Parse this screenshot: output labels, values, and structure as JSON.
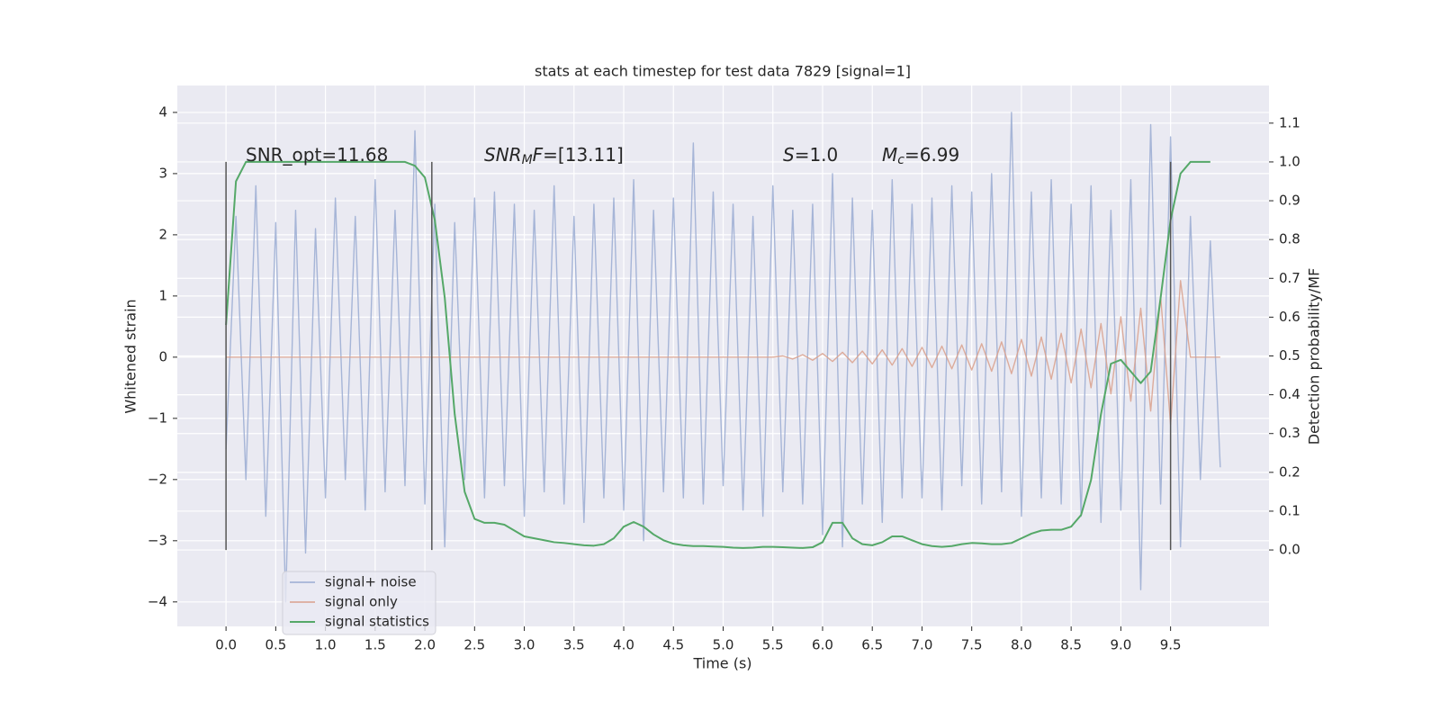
{
  "chart_data": {
    "type": "line",
    "title": "stats at each timestep for test data 7829 [signal=1]",
    "xlabel": "Time (s)",
    "ylabel": "Whitened strain",
    "y2label": "Detection probability/MF",
    "x": [
      0,
      0.1,
      0.2,
      0.3,
      0.4,
      0.5,
      0.6,
      0.7,
      0.8,
      0.9,
      1.0,
      1.1,
      1.2,
      1.3,
      1.4,
      1.5,
      1.6,
      1.7,
      1.8,
      1.9,
      2.0,
      2.1,
      2.2,
      2.3,
      2.4,
      2.5,
      2.6,
      2.7,
      2.8,
      2.9,
      3.0,
      3.1,
      3.2,
      3.3,
      3.4,
      3.5,
      3.6,
      3.7,
      3.8,
      3.9,
      4.0,
      4.1,
      4.2,
      4.3,
      4.4,
      4.5,
      4.6,
      4.7,
      4.8,
      4.9,
      5.0,
      5.1,
      5.2,
      5.3,
      5.4,
      5.5,
      5.6,
      5.7,
      5.8,
      5.9,
      6.0,
      6.1,
      6.2,
      6.3,
      6.4,
      6.5,
      6.6,
      6.7,
      6.8,
      6.9,
      7.0,
      7.1,
      7.2,
      7.3,
      7.4,
      7.5,
      7.6,
      7.7,
      7.8,
      7.9,
      8.0,
      8.1,
      8.2,
      8.3,
      8.4,
      8.5,
      8.6,
      8.7,
      8.8,
      8.9,
      9.0,
      9.1,
      9.2,
      9.3,
      9.4,
      9.5,
      9.6,
      9.7,
      9.8,
      9.9,
      10.0
    ],
    "series": [
      {
        "name": "signal+ noise",
        "color": "#9aabd2",
        "values": [
          -1.5,
          2.3,
          -2.0,
          2.8,
          -2.6,
          2.2,
          -4.0,
          2.4,
          -3.2,
          2.1,
          -2.3,
          2.6,
          -2.0,
          2.3,
          -2.5,
          2.9,
          -2.2,
          2.4,
          -2.1,
          3.7,
          -2.4,
          2.5,
          -3.1,
          2.2,
          -2.0,
          2.6,
          -2.3,
          2.7,
          -2.1,
          2.5,
          -2.6,
          2.4,
          -2.2,
          2.8,
          -2.4,
          2.3,
          -2.7,
          2.5,
          -2.3,
          2.6,
          -2.5,
          2.9,
          -3.0,
          2.4,
          -2.2,
          2.6,
          -2.3,
          3.5,
          -2.4,
          2.7,
          -2.1,
          2.5,
          -2.5,
          2.3,
          -2.6,
          2.8,
          -2.2,
          2.4,
          -2.4,
          2.5,
          -2.9,
          3.0,
          -3.1,
          2.6,
          -2.4,
          2.4,
          -2.7,
          2.9,
          -2.3,
          2.5,
          -2.3,
          2.6,
          -2.5,
          2.8,
          -2.1,
          2.7,
          -2.4,
          3.0,
          -2.2,
          4.0,
          -2.6,
          2.7,
          -2.3,
          2.9,
          -2.4,
          2.5,
          -2.6,
          2.8,
          -2.7,
          2.4,
          -2.5,
          2.9,
          -3.8,
          3.8,
          -2.4,
          3.6,
          -3.1,
          2.3,
          -2.0,
          1.9,
          -1.8
        ]
      },
      {
        "name": "signal only",
        "color": "#d9a08c",
        "values": [
          0,
          0,
          0,
          0,
          0,
          0,
          0,
          0,
          0,
          0,
          0,
          0,
          0,
          0,
          0,
          0,
          0,
          0,
          0,
          0,
          0,
          0,
          0,
          0,
          0,
          0,
          0,
          0,
          0,
          0,
          0,
          0,
          0,
          0,
          0,
          0,
          0,
          0,
          0,
          0,
          0,
          0,
          0,
          0,
          0,
          0,
          0,
          0,
          0,
          0,
          0,
          0,
          0,
          0,
          0,
          0.0,
          0.02,
          -0.03,
          0.04,
          -0.05,
          0.06,
          -0.07,
          0.08,
          -0.09,
          0.1,
          -0.11,
          0.12,
          -0.13,
          0.14,
          -0.15,
          0.16,
          -0.17,
          0.18,
          -0.19,
          0.2,
          -0.21,
          0.22,
          -0.23,
          0.25,
          -0.27,
          0.29,
          -0.31,
          0.33,
          -0.36,
          0.39,
          -0.42,
          0.46,
          -0.5,
          0.55,
          -0.6,
          0.66,
          -0.72,
          0.8,
          -0.88,
          1.0,
          -1.1,
          1.25,
          0,
          0,
          0,
          0
        ]
      },
      {
        "name": "signal statistics",
        "color": "#55a868",
        "axis": "y2",
        "values": [
          0.58,
          0.95,
          1.0,
          1.0,
          1.0,
          1.0,
          1.0,
          1.0,
          1.0,
          1.0,
          1.0,
          1.0,
          1.0,
          1.0,
          1.0,
          1.0,
          1.0,
          1.0,
          1.0,
          0.99,
          0.96,
          0.85,
          0.65,
          0.35,
          0.15,
          0.08,
          0.07,
          0.07,
          0.065,
          0.05,
          0.035,
          0.03,
          0.025,
          0.02,
          0.018,
          0.015,
          0.012,
          0.011,
          0.015,
          0.03,
          0.06,
          0.072,
          0.06,
          0.04,
          0.025,
          0.016,
          0.012,
          0.01,
          0.01,
          0.009,
          0.008,
          0.006,
          0.005,
          0.006,
          0.008,
          0.008,
          0.007,
          0.006,
          0.005,
          0.007,
          0.02,
          0.07,
          0.07,
          0.03,
          0.015,
          0.012,
          0.02,
          0.035,
          0.035,
          0.025,
          0.015,
          0.01,
          0.008,
          0.01,
          0.015,
          0.018,
          0.017,
          0.015,
          0.015,
          0.018,
          0.03,
          0.042,
          0.05,
          0.052,
          0.052,
          0.06,
          0.09,
          0.18,
          0.35,
          0.48,
          0.49,
          0.46,
          0.43,
          0.46,
          0.65,
          0.85,
          0.97,
          1.0,
          1.0,
          1.0,
          null
        ]
      }
    ],
    "vlines": {
      "x": [
        0,
        2.07,
        9.5
      ],
      "y2range": [
        0,
        1
      ],
      "color": "#555555"
    },
    "annotations": [
      {
        "parts": [
          {
            "text": "SNR_opt=11.68"
          }
        ]
      },
      {
        "parts": [
          {
            "text": "SNR",
            "style": "italic"
          },
          {
            "text": "M",
            "style": "sub"
          },
          {
            "text": "F",
            "style": "italic"
          },
          {
            "text": "=[13.11]"
          }
        ]
      },
      {
        "parts": [
          {
            "text": "S",
            "style": "italic"
          },
          {
            "text": "=1.0"
          }
        ]
      },
      {
        "parts": [
          {
            "text": "M",
            "style": "italic"
          },
          {
            "text": "c",
            "style": "sub"
          },
          {
            "text": "=6.99"
          }
        ]
      }
    ],
    "xlim": [
      -0.49,
      10.49
    ],
    "xticks": [
      {
        "value": 0,
        "label": "0.0"
      },
      0.5,
      {
        "value": 1,
        "label": "1.0"
      },
      1.5,
      {
        "value": 2,
        "label": "2.0"
      },
      2.5,
      {
        "value": 3,
        "label": "3.0"
      },
      3.5,
      {
        "value": 4,
        "label": "4.0"
      },
      4.5,
      {
        "value": 5,
        "label": "5.0"
      },
      5.5,
      {
        "value": 6,
        "label": "6.0"
      },
      6.5,
      {
        "value": 7,
        "label": "7.0"
      },
      7.5,
      {
        "value": 8,
        "label": "8.0"
      },
      8.5,
      {
        "value": 9,
        "label": "9.0"
      },
      9.5
    ],
    "ylim": [
      -4.4,
      4.44
    ],
    "yticks": [
      {
        "value": -4,
        "label": "−4"
      },
      {
        "value": -3,
        "label": "−3"
      },
      {
        "value": -2,
        "label": "−2"
      },
      {
        "value": -1,
        "label": "−1"
      },
      0,
      1,
      2,
      3,
      4
    ],
    "y2lim": [
      -0.197,
      1.197
    ],
    "y2ticks": [
      {
        "value": 0,
        "label": "0.0"
      },
      0.1,
      0.2,
      0.3,
      0.4,
      0.5,
      0.6,
      0.7,
      0.8,
      0.9,
      {
        "value": 1,
        "label": "1.0"
      },
      1.1
    ],
    "grid": true,
    "legend": "lower left"
  }
}
